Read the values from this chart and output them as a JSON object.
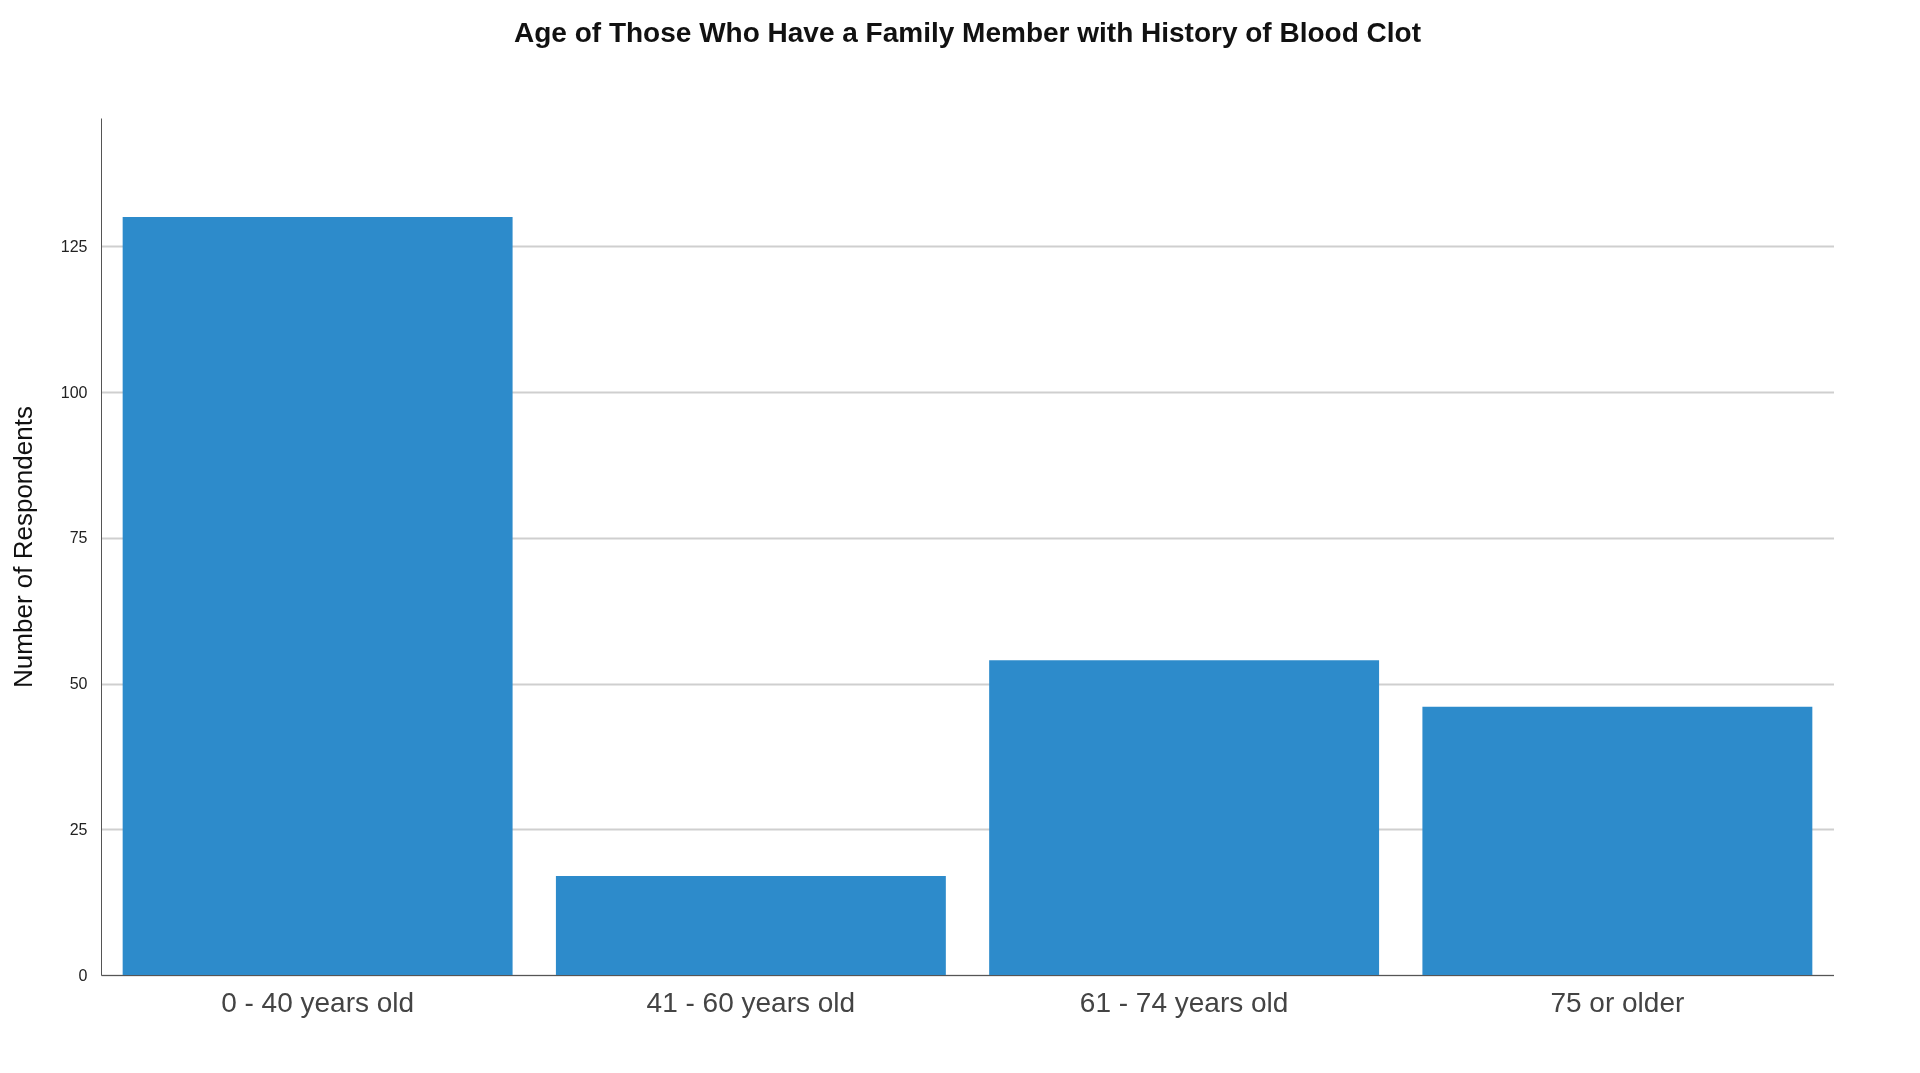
{
  "chart_data": {
    "type": "bar",
    "title": "Age of Those Who Have a Family Member with History of Blood Clot",
    "ylabel": "Number of Respondents",
    "categories": [
      "0 - 40 years old",
      "41 - 60 years old",
      "61 - 74 years old",
      "75 or older"
    ],
    "values": [
      130,
      17,
      54,
      46
    ],
    "color": "#2d8bcb",
    "ylim": [
      0,
      147
    ],
    "yticks": [
      0,
      25,
      50,
      75,
      100,
      125
    ],
    "grid": "y"
  }
}
